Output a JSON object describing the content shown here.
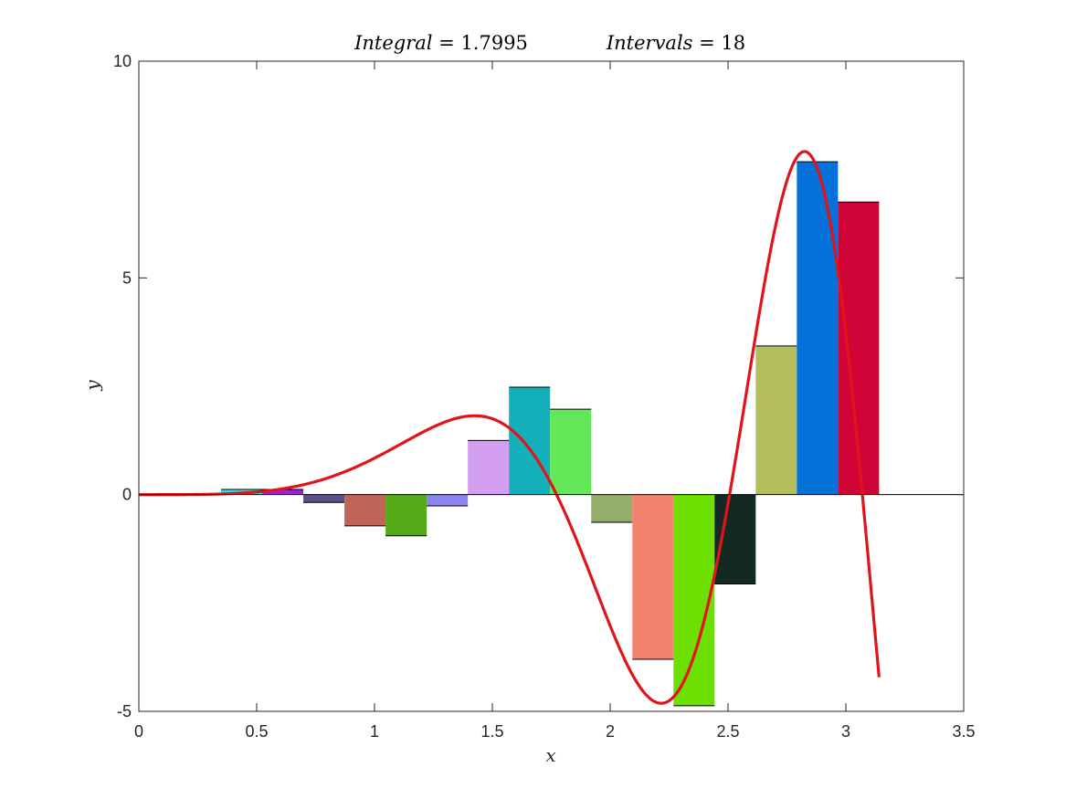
{
  "chart_data": {
    "type": "bar",
    "title_left": {
      "label": "Integral",
      "value": "1.7995"
    },
    "title_right": {
      "label": "Intervals",
      "value": "18"
    },
    "xlabel": "x",
    "ylabel": "y",
    "xlim": [
      0,
      3.5
    ],
    "ylim": [
      -5,
      10
    ],
    "xticks": [
      0,
      0.5,
      1,
      1.5,
      2,
      2.5,
      3,
      3.5
    ],
    "xtick_labels": [
      "0",
      "0.5",
      "1",
      "1.5",
      "2",
      "2.5",
      "3",
      "3.5"
    ],
    "yticks": [
      -5,
      0,
      5,
      10
    ],
    "ytick_labels": [
      "-5",
      "0",
      "5",
      "10"
    ],
    "grid": false,
    "curve_color": "#e0141a",
    "interval_start": 0,
    "interval_width": 0.1745,
    "values": [
      -0.02,
      0.02,
      0.12,
      0.12,
      -0.18,
      -0.72,
      -0.95,
      -0.26,
      1.25,
      2.48,
      1.97,
      -0.64,
      -3.8,
      -4.87,
      -2.06,
      3.43,
      7.68,
      6.75
    ],
    "bar_colors": [
      "#6d6d6d",
      "#8a9a5b",
      "#2ee0e8",
      "#a21ed8",
      "#5a4f8a",
      "#c06458",
      "#55aa18",
      "#8a84f2",
      "#d49ef0",
      "#13b0bc",
      "#63e85a",
      "#92ae6a",
      "#f2846f",
      "#6de000",
      "#122a22",
      "#b4bd5c",
      "#0472d8",
      "#d10438"
    ]
  }
}
